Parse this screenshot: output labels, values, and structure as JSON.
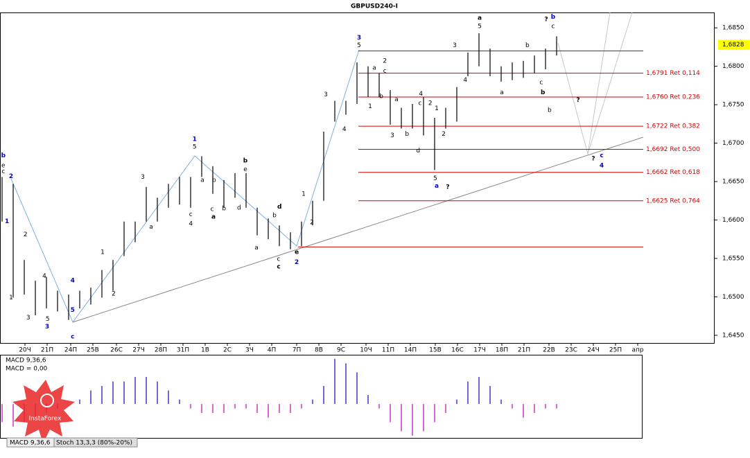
{
  "chart_data": [
    {
      "type": "ohlc",
      "title": "GBPUSD240-I",
      "color": "#000000",
      "x": [
        0,
        2,
        4,
        6,
        8,
        10,
        12,
        14,
        16,
        18,
        20,
        22,
        24,
        26,
        28,
        30,
        32,
        34,
        36,
        38,
        40,
        42,
        44,
        46,
        48,
        50,
        52,
        54,
        56,
        58,
        60,
        62,
        64,
        66,
        68,
        70,
        72,
        74,
        76,
        78,
        80,
        82,
        84,
        86,
        88,
        90,
        92,
        94,
        96,
        98,
        100
      ],
      "high": [
        1.6656,
        1.6647,
        1.6548,
        1.6521,
        1.6526,
        1.6508,
        1.6503,
        1.6508,
        1.6512,
        1.6535,
        1.6548,
        1.6598,
        1.6598,
        1.6643,
        1.6629,
        1.6647,
        1.6656,
        1.6656,
        1.6683,
        1.667,
        1.6652,
        1.6661,
        1.6661,
        1.6616,
        1.6602,
        1.6593,
        1.6584,
        1.6598,
        1.6625,
        1.6715,
        1.6755,
        1.6755,
        1.6805,
        1.68,
        1.6791,
        1.6769,
        1.6746,
        1.6751,
        1.676,
        1.6733,
        1.6746,
        1.6773,
        1.6818,
        1.6843,
        1.6823,
        1.68,
        1.6805,
        1.6807,
        1.6814,
        1.6823,
        1.6839
      ],
      "low": [
        1.6598,
        1.6499,
        1.6503,
        1.6476,
        1.6485,
        1.6481,
        1.647,
        1.6485,
        1.649,
        1.6499,
        1.6508,
        1.6553,
        1.6571,
        1.6598,
        1.6598,
        1.6616,
        1.662,
        1.6616,
        1.6656,
        1.6634,
        1.6616,
        1.6629,
        1.6616,
        1.658,
        1.6575,
        1.6566,
        1.6562,
        1.6566,
        1.6593,
        1.6625,
        1.6728,
        1.6737,
        1.6751,
        1.676,
        1.676,
        1.6724,
        1.6719,
        1.6719,
        1.671,
        1.6665,
        1.6719,
        1.6728,
        1.6787,
        1.68,
        1.6787,
        1.678,
        1.6782,
        1.6785,
        1.6791,
        1.6796,
        1.6814
      ],
      "xlim": [
        0,
        128.75
      ],
      "ylim": [
        1.644,
        1.687
      ],
      "yticks": [
        {
          "value": 1.685,
          "label": "1,6850"
        },
        {
          "value": 1.68,
          "label": "1,6800"
        },
        {
          "value": 1.675,
          "label": "1,6750"
        },
        {
          "value": 1.67,
          "label": "1,6700"
        },
        {
          "value": 1.665,
          "label": "1,6650"
        },
        {
          "value": 1.66,
          "label": "1,6600"
        },
        {
          "value": 1.655,
          "label": "1,6550"
        },
        {
          "value": 1.65,
          "label": "1,6500"
        },
        {
          "value": 1.645,
          "label": "1,6450"
        }
      ],
      "xticks": [
        {
          "value": 4.5,
          "label": "20Ч"
        },
        {
          "value": 8.5,
          "label": "21П"
        },
        {
          "value": 12.75,
          "label": "24П"
        },
        {
          "value": 16.75,
          "label": "25В"
        },
        {
          "value": 21,
          "label": "26С"
        },
        {
          "value": 25,
          "label": "27Ч"
        },
        {
          "value": 29,
          "label": "28П"
        },
        {
          "value": 33,
          "label": "31П"
        },
        {
          "value": 37,
          "label": "1В"
        },
        {
          "value": 41,
          "label": "2С"
        },
        {
          "value": 45,
          "label": "3Ч"
        },
        {
          "value": 49,
          "label": "4П"
        },
        {
          "value": 53.5,
          "label": "7П"
        },
        {
          "value": 57.5,
          "label": "8В"
        },
        {
          "value": 61.5,
          "label": "9С"
        },
        {
          "value": 66,
          "label": "10Ч"
        },
        {
          "value": 70,
          "label": "11П"
        },
        {
          "value": 74,
          "label": "14П"
        },
        {
          "value": 78.5,
          "label": "15В"
        },
        {
          "value": 82.5,
          "label": "16С"
        },
        {
          "value": 86.5,
          "label": "17Ч"
        },
        {
          "value": 90.5,
          "label": "18П"
        },
        {
          "value": 94.5,
          "label": "21П"
        },
        {
          "value": 99,
          "label": "22В"
        },
        {
          "value": 103,
          "label": "23С"
        },
        {
          "value": 107,
          "label": "24Ч"
        },
        {
          "value": 111,
          "label": "25П"
        },
        {
          "value": 115,
          "label": "апр"
        }
      ],
      "last_price": {
        "value": 1.6828,
        "label": "1,6828"
      },
      "fib_levels": [
        {
          "value": 1.6791,
          "label": "1,6791 Ret 0,114"
        },
        {
          "value": 1.676,
          "label": "1,6760 Ret 0,236"
        },
        {
          "value": 1.6722,
          "label": "1,6722 Ret 0,382"
        },
        {
          "value": 1.6692,
          "label": "1,6692 Ret 0,500"
        },
        {
          "value": 1.6662,
          "label": "1,6662 Ret 0,618"
        },
        {
          "value": 1.6625,
          "label": "1,6625 Ret 0,764"
        }
      ],
      "level_lines": [
        1.682,
        1.6565
      ],
      "annotations": [
        {
          "text": "3",
          "x": 64.75,
          "y": 1.6837,
          "color": "#0000cc"
        },
        {
          "text": "1",
          "x": 35.1,
          "y": 1.6705,
          "color": "#0000cc"
        },
        {
          "text": "4",
          "x": 13.1,
          "y": 1.6521,
          "color": "#0000cc"
        },
        {
          "text": "5",
          "x": 13.1,
          "y": 1.6483,
          "color": "#0000cc"
        },
        {
          "text": "c",
          "x": 13.1,
          "y": 1.6448,
          "color": "#0000cc"
        },
        {
          "text": "2",
          "x": 53.5,
          "y": 1.6545,
          "color": "#0000cc"
        },
        {
          "text": "a",
          "x": 78.75,
          "y": 1.6644,
          "color": "#0000cc"
        },
        {
          "text": "b",
          "x": 99.75,
          "y": 1.6864,
          "color": "#0000cc"
        },
        {
          "text": "c",
          "x": 108.5,
          "y": 1.6684,
          "color": "#0000cc"
        },
        {
          "text": "4",
          "x": 108.5,
          "y": 1.6671,
          "color": "#0000cc"
        },
        {
          "text": "3",
          "x": 8.5,
          "y": 1.6461,
          "color": "#0000cc"
        },
        {
          "text": "2",
          "x": 2,
          "y": 1.6657,
          "color": "#0000cc"
        },
        {
          "text": "b",
          "x": 0.6,
          "y": 1.6684,
          "color": "#0000cc"
        },
        {
          "text": "1",
          "x": 1.25,
          "y": 1.6598,
          "color": "#0000cc"
        },
        {
          "text": "a",
          "x": 86.5,
          "y": 1.6863,
          "bold": true
        },
        {
          "text": "5",
          "x": 86.5,
          "y": 1.6852
        },
        {
          "text": "?",
          "x": 98.5,
          "y": 1.6861,
          "bold": true
        },
        {
          "text": "c",
          "x": 99.75,
          "y": 1.6852
        },
        {
          "text": "5",
          "x": 64.75,
          "y": 1.6827
        },
        {
          "text": "5",
          "x": 35.1,
          "y": 1.6695
        },
        {
          "text": "2",
          "x": 69.4,
          "y": 1.6807
        },
        {
          "text": "a",
          "x": 67.5,
          "y": 1.6798
        },
        {
          "text": "c",
          "x": 69.4,
          "y": 1.6794
        },
        {
          "text": "b",
          "x": 68.75,
          "y": 1.6761
        },
        {
          "text": "1",
          "x": 66.75,
          "y": 1.6748
        },
        {
          "text": "3",
          "x": 58.75,
          "y": 1.6763
        },
        {
          "text": "4",
          "x": 62.1,
          "y": 1.6718
        },
        {
          "text": "1",
          "x": 54.75,
          "y": 1.6634
        },
        {
          "text": "2",
          "x": 56.25,
          "y": 1.6597
        },
        {
          "text": "d",
          "x": 50.4,
          "y": 1.6617,
          "bold": true
        },
        {
          "text": "b",
          "x": 49.5,
          "y": 1.6606
        },
        {
          "text": "c",
          "x": 50.25,
          "y": 1.6549
        },
        {
          "text": "c",
          "x": 50.25,
          "y": 1.6539,
          "bold": true
        },
        {
          "text": "e",
          "x": 53.5,
          "y": 1.6558,
          "bold": true
        },
        {
          "text": "b",
          "x": 44.25,
          "y": 1.6677,
          "bold": true
        },
        {
          "text": "e",
          "x": 44.25,
          "y": 1.6666
        },
        {
          "text": "3",
          "x": 25.75,
          "y": 1.6656
        },
        {
          "text": "a",
          "x": 27.25,
          "y": 1.6591
        },
        {
          "text": "c",
          "x": 34.4,
          "y": 1.6607
        },
        {
          "text": "4",
          "x": 34.4,
          "y": 1.6595
        },
        {
          "text": "a",
          "x": 36.5,
          "y": 1.6652
        },
        {
          "text": "b",
          "x": 38.6,
          "y": 1.6652
        },
        {
          "text": "c",
          "x": 38.25,
          "y": 1.6614
        },
        {
          "text": "a",
          "x": 38.5,
          "y": 1.6604,
          "bold": true
        },
        {
          "text": "b",
          "x": 40.4,
          "y": 1.6615
        },
        {
          "text": "d",
          "x": 43.1,
          "y": 1.6616
        },
        {
          "text": "a",
          "x": 46.25,
          "y": 1.6564
        },
        {
          "text": "1",
          "x": 18.5,
          "y": 1.6558
        },
        {
          "text": "2",
          "x": 20.5,
          "y": 1.6504
        },
        {
          "text": "4",
          "x": 8,
          "y": 1.6527
        },
        {
          "text": "5",
          "x": 8.6,
          "y": 1.6471
        },
        {
          "text": "3",
          "x": 5.1,
          "y": 1.6473
        },
        {
          "text": "1",
          "x": 2,
          "y": 1.6499
        },
        {
          "text": "2",
          "x": 4.6,
          "y": 1.6581
        },
        {
          "text": "e",
          "x": 0.6,
          "y": 1.6671
        },
        {
          "text": "c",
          "x": 0.6,
          "y": 1.6663
        },
        {
          "text": "4",
          "x": 75.9,
          "y": 1.6764
        },
        {
          "text": "c",
          "x": 75.75,
          "y": 1.6752
        },
        {
          "text": "2",
          "x": 77.6,
          "y": 1.6752
        },
        {
          "text": "b",
          "x": 73.4,
          "y": 1.6712
        },
        {
          "text": "3",
          "x": 70.75,
          "y": 1.671
        },
        {
          "text": "a",
          "x": 71.5,
          "y": 1.6757
        },
        {
          "text": "d",
          "x": 75.4,
          "y": 1.669
        },
        {
          "text": "1",
          "x": 78.75,
          "y": 1.6745
        },
        {
          "text": "2",
          "x": 80,
          "y": 1.6712
        },
        {
          "text": "5",
          "x": 78.5,
          "y": 1.6654
        },
        {
          "text": "?",
          "x": 80.75,
          "y": 1.6643,
          "bold": true
        },
        {
          "text": "3",
          "x": 82,
          "y": 1.6827
        },
        {
          "text": "4",
          "x": 83.9,
          "y": 1.6782
        },
        {
          "text": "a",
          "x": 90.5,
          "y": 1.6766
        },
        {
          "text": "b",
          "x": 95.1,
          "y": 1.6827
        },
        {
          "text": "c",
          "x": 97.6,
          "y": 1.6779
        },
        {
          "text": "b",
          "x": 97.9,
          "y": 1.6766,
          "bold": true
        },
        {
          "text": "b",
          "x": 99.1,
          "y": 1.6743
        },
        {
          "text": "?",
          "x": 104.25,
          "y": 1.6756,
          "bold": true
        },
        {
          "text": "?",
          "x": 107,
          "y": 1.668,
          "bold": true
        }
      ]
    },
    {
      "type": "histogram",
      "title": "MACD 9,36,6",
      "subtitle": "MACD = 0,00",
      "pos_color": "#3a3acc",
      "neg_color": "#cc33cc",
      "ylim": [
        -0.00075,
        0.00109
      ],
      "x": [
        0,
        2,
        4,
        6,
        8,
        10,
        12,
        14,
        16,
        18,
        20,
        22,
        24,
        26,
        28,
        30,
        32,
        34,
        36,
        38,
        40,
        42,
        44,
        46,
        48,
        50,
        52,
        54,
        56,
        58,
        60,
        62,
        64,
        66,
        68,
        70,
        72,
        74,
        76,
        78,
        80,
        82,
        84,
        86,
        88,
        90,
        92,
        94,
        96,
        98,
        100
      ],
      "values": [
        -0.0004,
        -0.0005,
        -0.0004,
        -0.0003,
        -0.0002,
        -0.0001,
        0,
        0.0001,
        0.0003,
        0.0004,
        0.0005,
        0.0005,
        0.0006,
        0.0006,
        0.0005,
        0.0003,
        0.0001,
        -0.0001,
        -0.0002,
        -0.0002,
        -0.0002,
        -0.0001,
        -0.0001,
        -0.0002,
        -0.0003,
        -0.0002,
        -0.0002,
        -0.0001,
        0.0001,
        0.0004,
        0.001,
        0.0009,
        0.0007,
        0.0002,
        -0.0001,
        -0.0004,
        -0.0006,
        -0.0007,
        -0.0006,
        -0.0004,
        -0.0002,
        0.0001,
        0.0005,
        0.0006,
        0.0004,
        0.0001,
        -0.0001,
        -0.0003,
        -0.0002,
        -0.0001,
        -0.0001
      ]
    }
  ],
  "tabs": [
    "MACD 9,36,6",
    "Stoch 13,3,3 (80%-20%)"
  ],
  "logo": "InstaForex"
}
